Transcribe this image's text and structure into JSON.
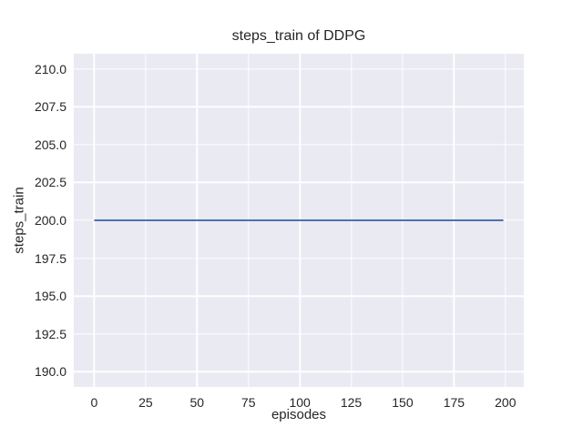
{
  "chart_data": {
    "type": "line",
    "title": "steps_train of DDPG",
    "xlabel": "episodes",
    "ylabel": "steps_train",
    "xlim": [
      -9.95,
      208.95
    ],
    "ylim": [
      189.0,
      211.0
    ],
    "xticks": [
      0,
      25,
      50,
      75,
      100,
      125,
      150,
      175,
      200
    ],
    "xtick_labels": [
      "0",
      "25",
      "50",
      "75",
      "100",
      "125",
      "150",
      "175",
      "200"
    ],
    "yticks": [
      210.0,
      207.5,
      205.0,
      202.5,
      200.0,
      197.5,
      195.0,
      192.5,
      190.0
    ],
    "ytick_labels": [
      "210.0",
      "207.5",
      "205.0",
      "202.5",
      "200.0",
      "197.5",
      "195.0",
      "192.5",
      "190.0"
    ],
    "grid": true,
    "legend": false,
    "series": [
      {
        "name": "steps_train",
        "x": [
          0,
          199
        ],
        "y": [
          200,
          200
        ]
      }
    ],
    "colors": {
      "figure_background": "#ffffff",
      "axes_background": "#eaeaf2",
      "gridline": "#ffffff",
      "line": "#4c72b0",
      "text": "#262626"
    }
  }
}
